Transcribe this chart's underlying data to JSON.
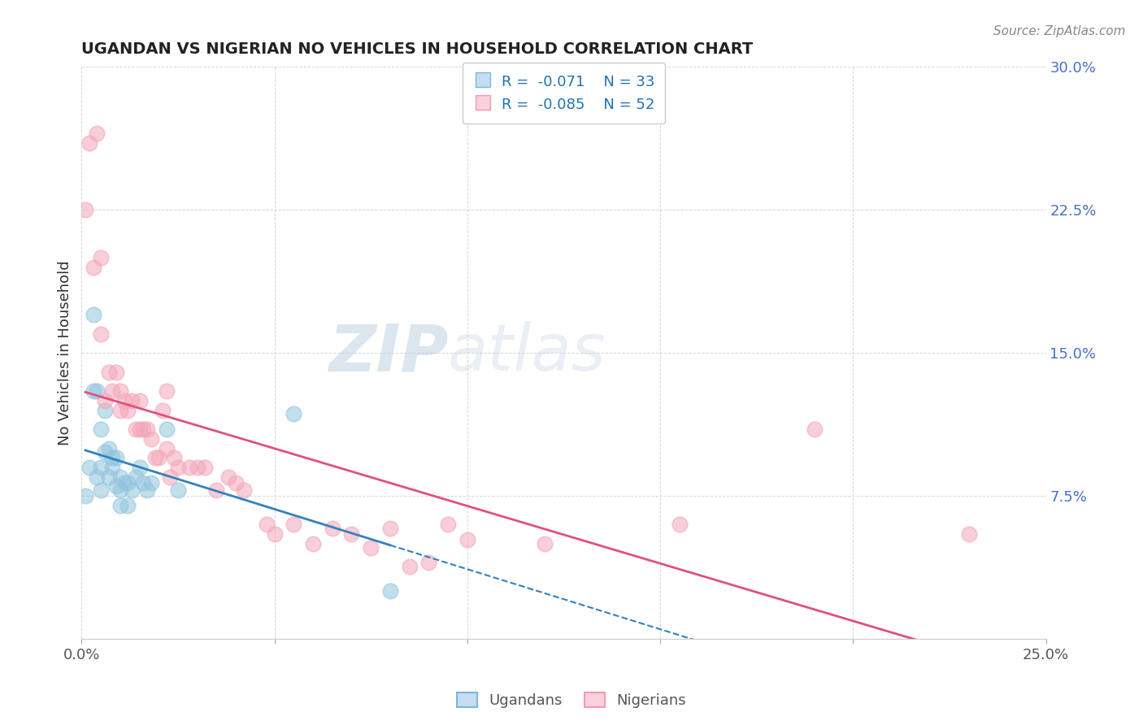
{
  "title": "UGANDAN VS NIGERIAN NO VEHICLES IN HOUSEHOLD CORRELATION CHART",
  "source": "Source: ZipAtlas.com",
  "ylabel": "No Vehicles in Household",
  "xlim": [
    0.0,
    0.25
  ],
  "ylim": [
    0.0,
    0.3
  ],
  "xticks": [
    0.0,
    0.05,
    0.1,
    0.15,
    0.2,
    0.25
  ],
  "xticklabels": [
    "0.0%",
    "",
    "",
    "",
    "",
    "25.0%"
  ],
  "yticks": [
    0.0,
    0.075,
    0.15,
    0.225,
    0.3
  ],
  "yticklabels": [
    "",
    "7.5%",
    "15.0%",
    "22.5%",
    "30.0%"
  ],
  "legend_r1": "R =  -0.071",
  "legend_n1": "N = 33",
  "legend_r2": "R =  -0.085",
  "legend_n2": "N = 52",
  "blue_scatter_color": "#92c5de",
  "pink_scatter_color": "#f4a6b8",
  "blue_line_color": "#3182bd",
  "pink_line_color": "#e05080",
  "watermark_zip": "ZIP",
  "watermark_atlas": "atlas",
  "ugandan_x": [
    0.001,
    0.002,
    0.003,
    0.003,
    0.004,
    0.004,
    0.005,
    0.005,
    0.005,
    0.006,
    0.006,
    0.007,
    0.007,
    0.008,
    0.008,
    0.009,
    0.009,
    0.01,
    0.01,
    0.01,
    0.011,
    0.012,
    0.012,
    0.013,
    0.014,
    0.015,
    0.016,
    0.017,
    0.018,
    0.022,
    0.025,
    0.055,
    0.08
  ],
  "ugandan_y": [
    0.075,
    0.09,
    0.17,
    0.13,
    0.13,
    0.085,
    0.11,
    0.09,
    0.078,
    0.12,
    0.098,
    0.1,
    0.085,
    0.095,
    0.09,
    0.095,
    0.08,
    0.085,
    0.078,
    0.07,
    0.082,
    0.082,
    0.07,
    0.078,
    0.085,
    0.09,
    0.082,
    0.078,
    0.082,
    0.11,
    0.078,
    0.118,
    0.025
  ],
  "nigerian_x": [
    0.001,
    0.002,
    0.003,
    0.004,
    0.005,
    0.005,
    0.006,
    0.007,
    0.008,
    0.009,
    0.01,
    0.01,
    0.011,
    0.012,
    0.013,
    0.014,
    0.015,
    0.015,
    0.016,
    0.017,
    0.018,
    0.019,
    0.02,
    0.021,
    0.022,
    0.022,
    0.023,
    0.024,
    0.025,
    0.028,
    0.03,
    0.032,
    0.035,
    0.038,
    0.04,
    0.042,
    0.048,
    0.05,
    0.055,
    0.06,
    0.065,
    0.07,
    0.075,
    0.08,
    0.085,
    0.09,
    0.095,
    0.1,
    0.12,
    0.155,
    0.19,
    0.23
  ],
  "nigerian_y": [
    0.225,
    0.26,
    0.195,
    0.265,
    0.2,
    0.16,
    0.125,
    0.14,
    0.13,
    0.14,
    0.13,
    0.12,
    0.125,
    0.12,
    0.125,
    0.11,
    0.11,
    0.125,
    0.11,
    0.11,
    0.105,
    0.095,
    0.095,
    0.12,
    0.13,
    0.1,
    0.085,
    0.095,
    0.09,
    0.09,
    0.09,
    0.09,
    0.078,
    0.085,
    0.082,
    0.078,
    0.06,
    0.055,
    0.06,
    0.05,
    0.058,
    0.055,
    0.048,
    0.058,
    0.038,
    0.04,
    0.06,
    0.052,
    0.05,
    0.06,
    0.11,
    0.055
  ]
}
